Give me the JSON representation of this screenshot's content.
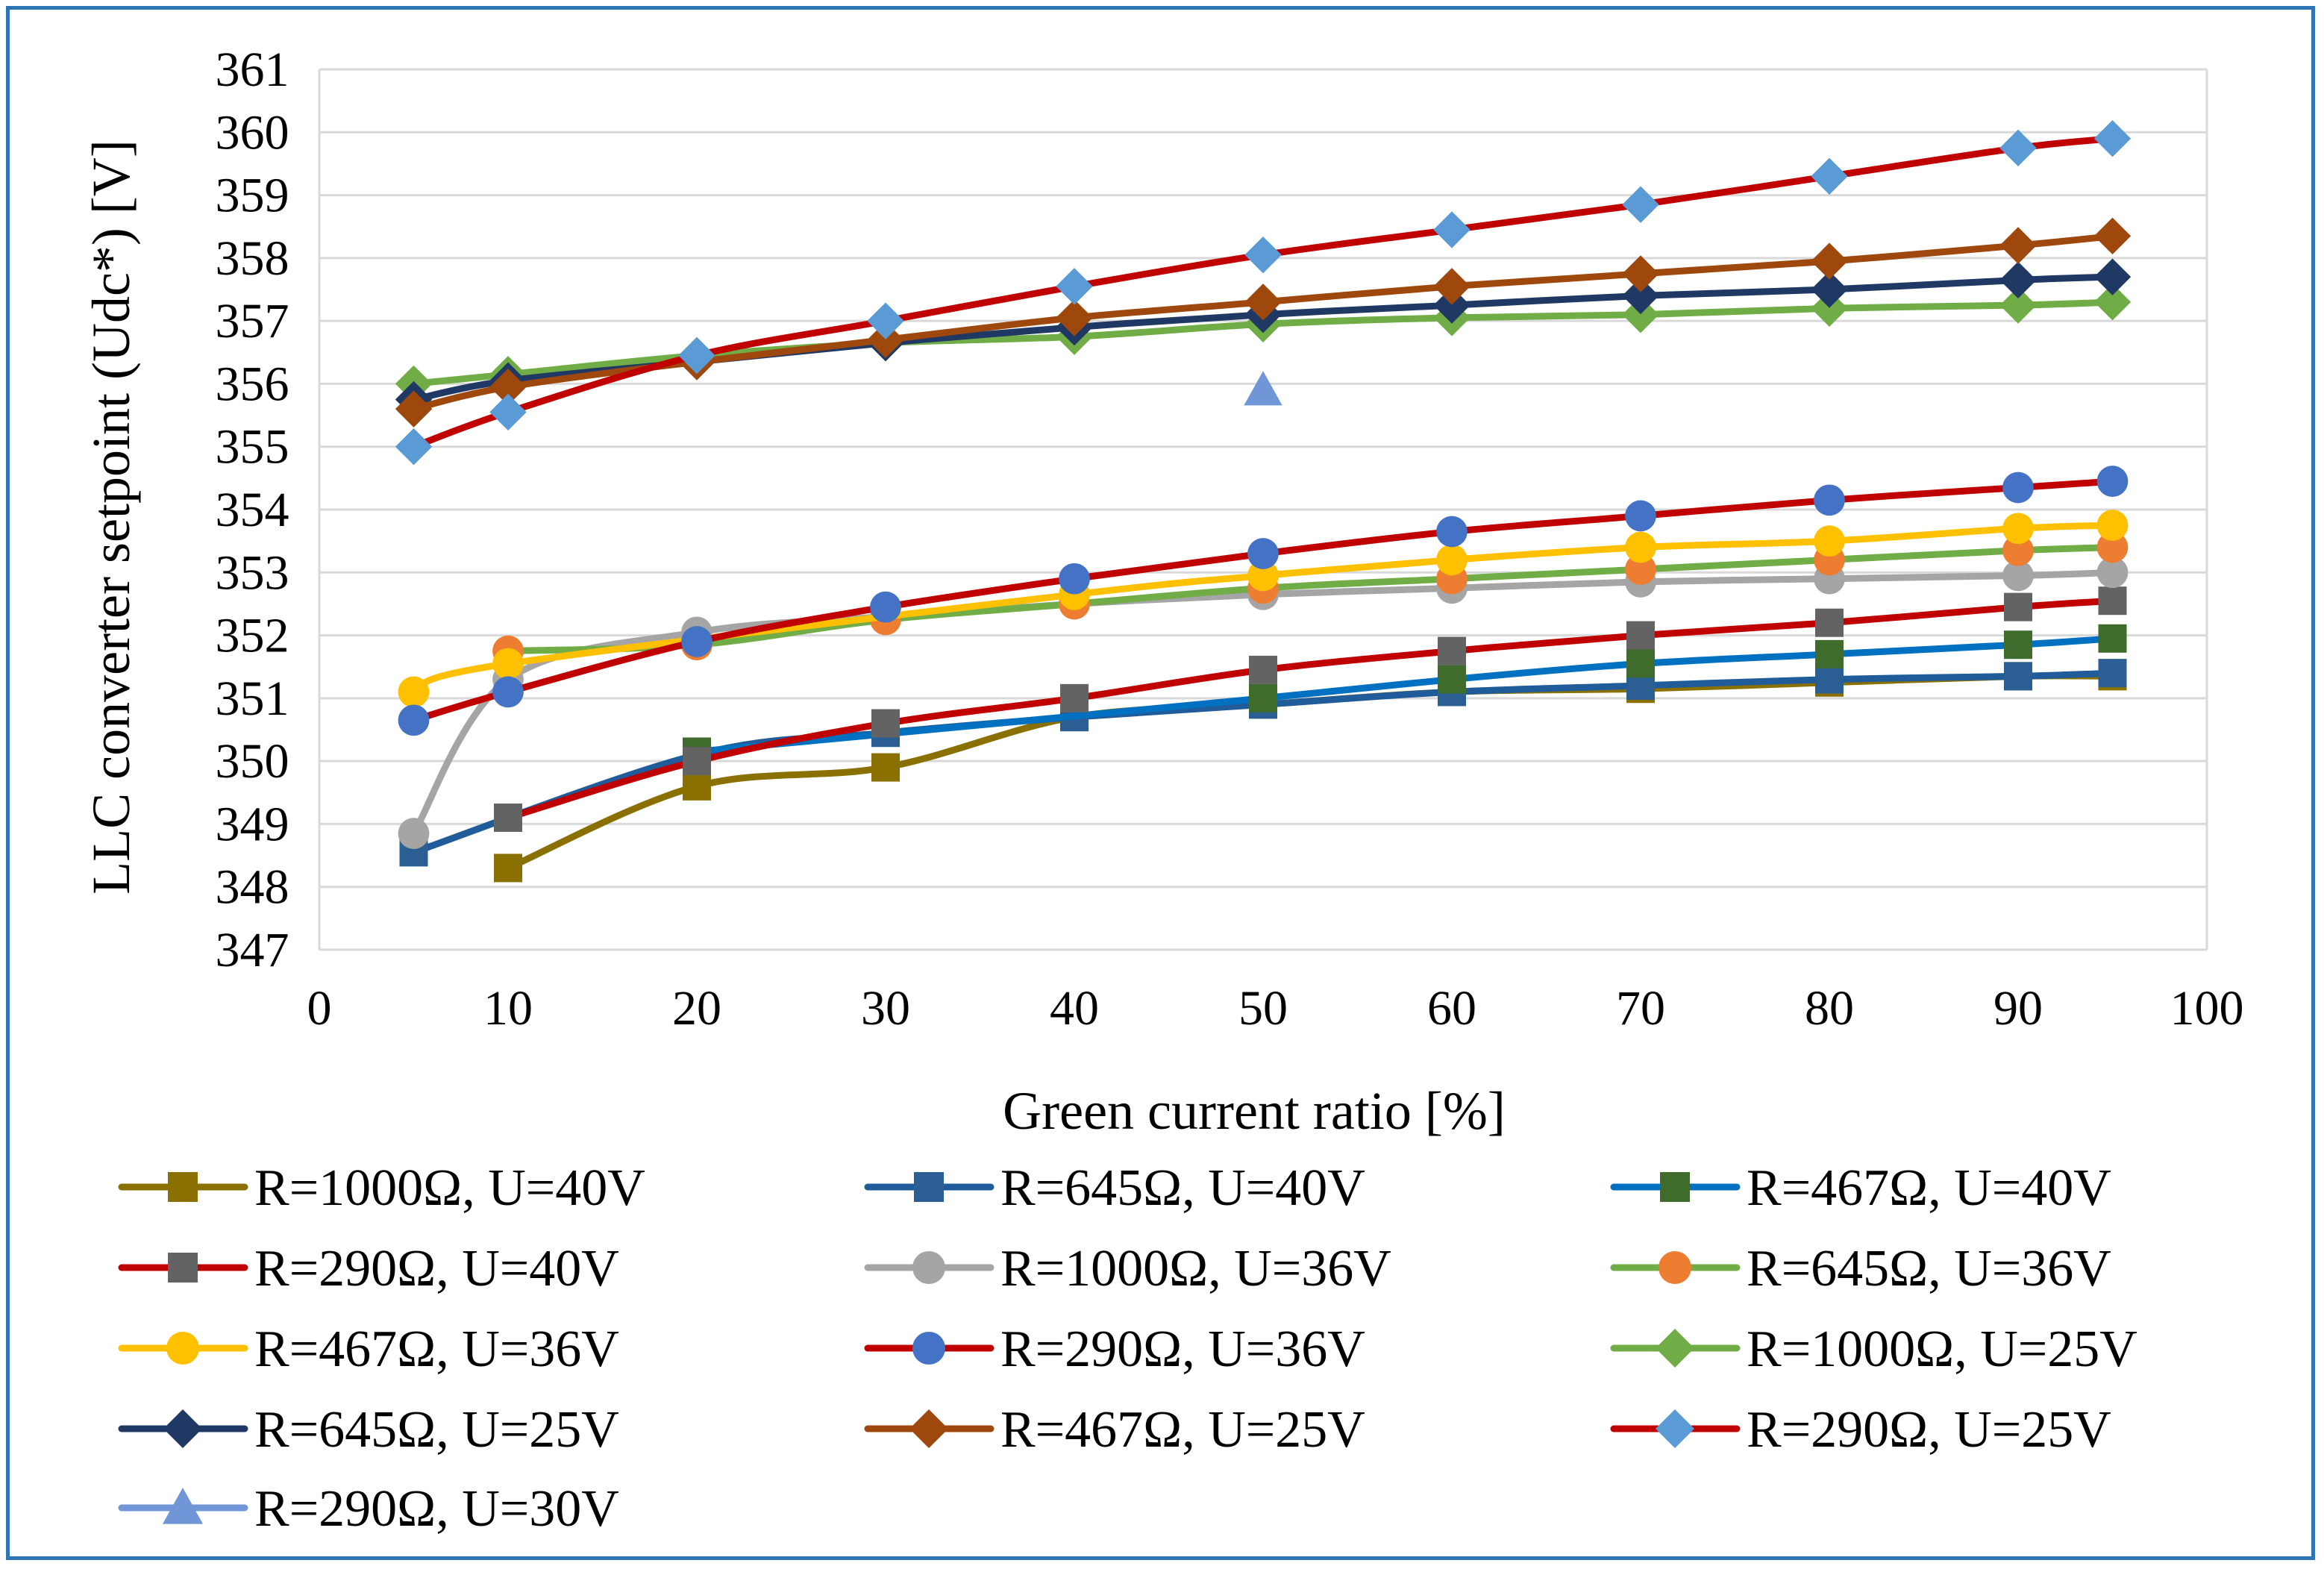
{
  "chart_data": {
    "type": "line",
    "title": "",
    "xlabel": "Green current ratio [%]",
    "ylabel": "LLC converter setpoint (Udc*) [V]",
    "xlim": [
      0,
      100
    ],
    "ylim": [
      347,
      361
    ],
    "xticks": [
      "0",
      "10",
      "20",
      "30",
      "40",
      "50",
      "60",
      "70",
      "80",
      "90",
      "100"
    ],
    "yticks": [
      "347",
      "348",
      "349",
      "350",
      "351",
      "352",
      "353",
      "354",
      "355",
      "356",
      "357",
      "358",
      "359",
      "360",
      "361"
    ],
    "x": [
      5,
      10,
      20,
      30,
      40,
      50,
      60,
      70,
      80,
      90,
      95
    ],
    "grid": "horizontal",
    "legend_position": "bottom",
    "series": [
      {
        "name": "R=1000Ω, U=40V",
        "line_color": "#8a7000",
        "marker_color": "#8a7000",
        "marker": "square",
        "values": [
          null,
          348.3,
          349.6,
          349.9,
          350.7,
          350.9,
          351.1,
          351.15,
          351.25,
          351.35,
          351.35
        ]
      },
      {
        "name": "R=645Ω, U=40V",
        "line_color": "#1f5c99",
        "marker_color": "#2b5f93",
        "marker": "square",
        "values": [
          348.55,
          null,
          350.1,
          350.45,
          350.7,
          350.9,
          351.1,
          351.2,
          351.3,
          351.35,
          351.4
        ]
      },
      {
        "name": "R=467Ω, U=40V",
        "line_color": "#0070c0",
        "marker_color": "#3f6b2c",
        "marker": "square",
        "values": [
          null,
          null,
          350.15,
          null,
          null,
          351.0,
          351.3,
          351.55,
          351.7,
          351.85,
          351.95
        ]
      },
      {
        "name": "R=290Ω, U=40V",
        "line_color": "#c00000",
        "marker_color": "#636363",
        "marker": "square",
        "values": [
          null,
          349.1,
          350.0,
          350.6,
          351.0,
          351.45,
          351.75,
          352.0,
          352.2,
          352.45,
          352.55
        ]
      },
      {
        "name": "R=1000Ω, U=36V",
        "line_color": "#a5a5a5",
        "marker_color": "#a5a5a5",
        "marker": "circle",
        "values": [
          348.85,
          351.3,
          352.05,
          352.3,
          352.5,
          352.65,
          352.75,
          352.85,
          352.9,
          352.95,
          353.0
        ]
      },
      {
        "name": "R=645Ω, U=36V",
        "line_color": "#70ad47",
        "marker_color": "#ed7d31",
        "marker": "circle",
        "values": [
          null,
          351.75,
          351.85,
          352.25,
          352.5,
          352.75,
          352.9,
          353.05,
          353.2,
          353.35,
          353.4
        ]
      },
      {
        "name": "R=467Ω, U=36V",
        "line_color": "#ffc000",
        "marker_color": "#ffc000",
        "marker": "circle",
        "values": [
          351.1,
          351.55,
          null,
          null,
          352.65,
          352.95,
          353.2,
          353.4,
          353.5,
          353.7,
          353.75
        ]
      },
      {
        "name": "R=290Ω, U=36V",
        "line_color": "#c00000",
        "marker_color": "#4472c4",
        "marker": "circle",
        "values": [
          350.65,
          351.1,
          351.9,
          352.45,
          352.9,
          353.3,
          353.65,
          353.9,
          354.15,
          354.35,
          354.45
        ]
      },
      {
        "name": "R=1000Ω, U=25V",
        "line_color": "#70ad47",
        "marker_color": "#70ad47",
        "marker": "diamond",
        "values": [
          356.0,
          356.15,
          356.45,
          356.65,
          356.75,
          356.95,
          357.05,
          357.1,
          357.2,
          357.25,
          357.3
        ]
      },
      {
        "name": "R=645Ω, U=25V",
        "line_color": "#203864",
        "marker_color": "#203864",
        "marker": "diamond",
        "values": [
          355.75,
          356.05,
          356.35,
          356.65,
          356.9,
          357.1,
          357.25,
          357.4,
          357.5,
          357.65,
          357.7
        ]
      },
      {
        "name": "R=467Ω, U=25V",
        "line_color": "#9e480e",
        "marker_color": "#9e480e",
        "marker": "diamond",
        "values": [
          355.6,
          355.95,
          356.35,
          356.7,
          357.05,
          357.3,
          357.55,
          357.75,
          357.95,
          358.2,
          358.35
        ]
      },
      {
        "name": "R=290Ω, U=25V",
        "line_color": "#c00000",
        "marker_color": "#5b9bd5",
        "marker": "diamond",
        "values": [
          355.0,
          355.55,
          356.45,
          357.0,
          357.55,
          358.05,
          358.45,
          358.85,
          359.3,
          359.75,
          359.9
        ]
      },
      {
        "name": "R=290Ω, U=30V",
        "line_color": "#7096d8",
        "marker_color": "#7096d8",
        "marker": "triangle",
        "values": [
          null,
          null,
          null,
          null,
          null,
          355.9,
          null,
          null,
          null,
          null,
          null
        ]
      }
    ]
  }
}
